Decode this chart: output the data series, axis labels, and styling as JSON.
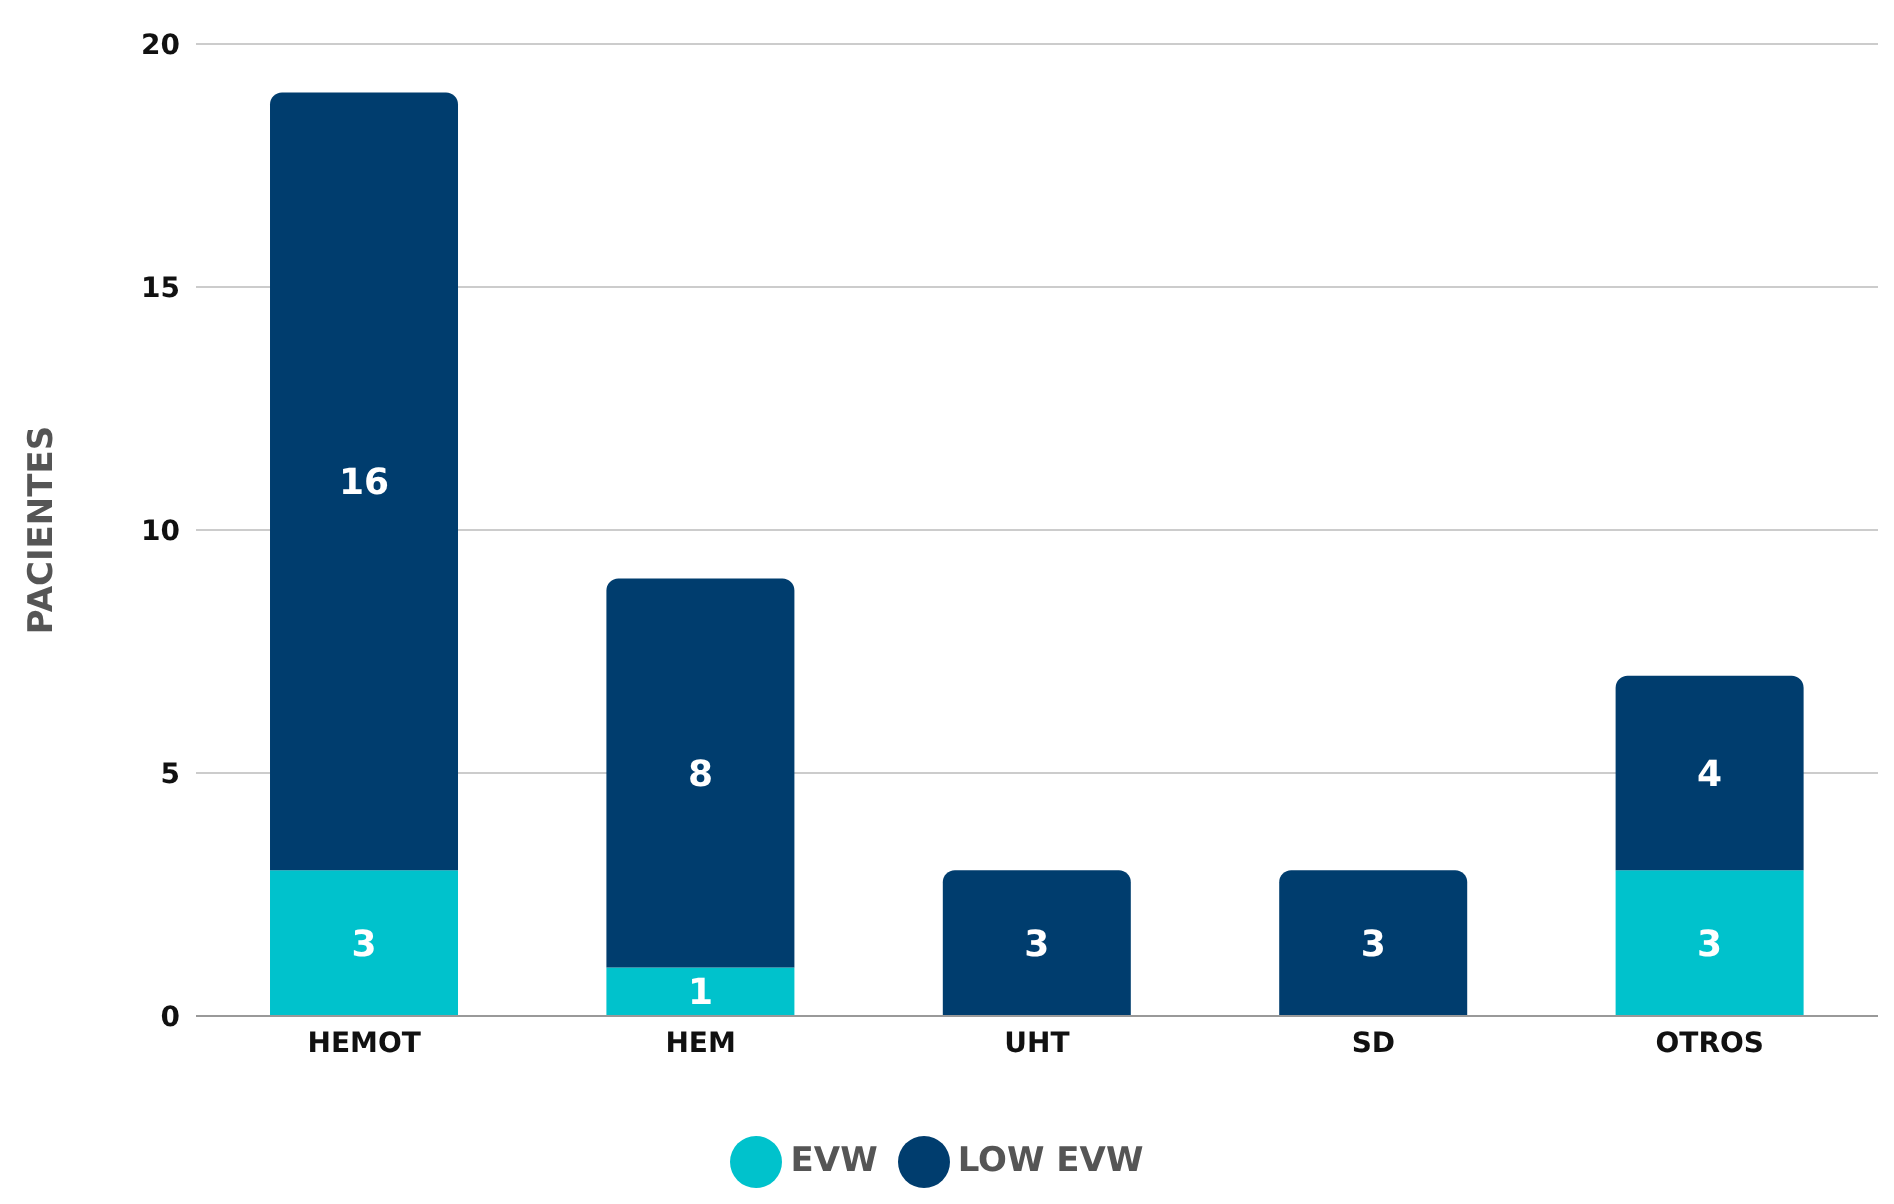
{
  "chart_data": {
    "type": "bar",
    "ylabel": "PACIENTES",
    "categories": [
      "HEMOT",
      "HEM",
      "UHT",
      "SD",
      "OTROS"
    ],
    "stacked": true,
    "data_labels": true,
    "series": [
      {
        "name": "EVW",
        "color": "#00c2cc",
        "values": [
          3,
          1,
          null,
          null,
          3
        ]
      },
      {
        "name": "LOW EVW",
        "color": "#003d6e",
        "values": [
          16,
          8,
          3,
          3,
          4
        ]
      }
    ],
    "ylim": [
      0,
      20
    ],
    "yticks": [
      0,
      5,
      10,
      15,
      20
    ],
    "grid": "y",
    "legend": "bottom"
  }
}
